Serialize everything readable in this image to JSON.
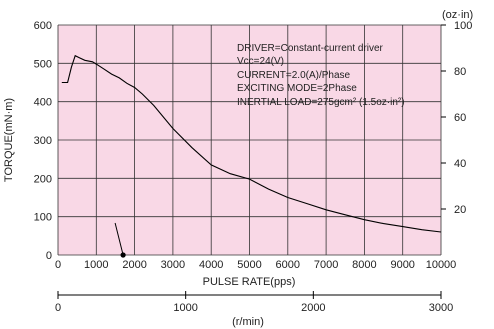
{
  "chart_data": {
    "type": "line",
    "title": "",
    "xlabel": "PULSE RATE(pps)",
    "ylabel": "TORQUE(mN·m)",
    "ylabel_right": "(oz·in)",
    "secondary_xlabel": "(r/min)",
    "xlim": [
      0,
      10000
    ],
    "ylim": [
      0,
      600
    ],
    "ylim_right": [
      0,
      100
    ],
    "xticks": [
      0,
      1000,
      2000,
      3000,
      4000,
      5000,
      6000,
      7000,
      8000,
      9000,
      10000
    ],
    "yticks": [
      0,
      100,
      200,
      300,
      400,
      500,
      600
    ],
    "yticks_right": [
      20,
      40,
      60,
      80,
      100
    ],
    "secondary_xticks": [
      0,
      1000,
      2000,
      3000
    ],
    "secondary_xlim": [
      0,
      3000
    ],
    "grid": true,
    "background": "#f9d8e6",
    "line_color": "#000000",
    "annotations": [
      "DRIVER=Constant-current driver",
      "Vcc=24(V)",
      "CURRENT=2.0(A)/Phase",
      "EXCITING MODE=2Phase",
      "INERTIAL LOAD=275gcm² (1.5oz·in²)"
    ],
    "marker_point": {
      "x": 1700,
      "y": 0
    },
    "series": [
      {
        "x": [
          100,
          250,
          350,
          450,
          550,
          700,
          900,
          1000,
          1200,
          1400,
          1600,
          1800,
          2000,
          2200,
          2500,
          3000,
          3500,
          4000,
          4500,
          5000,
          5500,
          6000,
          6500,
          7000,
          7500,
          8000,
          8500,
          9000,
          9500,
          10000
        ],
        "values": [
          450,
          450,
          490,
          520,
          515,
          508,
          504,
          498,
          485,
          472,
          462,
          448,
          437,
          420,
          390,
          330,
          280,
          235,
          212,
          198,
          172,
          150,
          134,
          118,
          105,
          92,
          82,
          74,
          66,
          60
        ]
      }
    ]
  }
}
